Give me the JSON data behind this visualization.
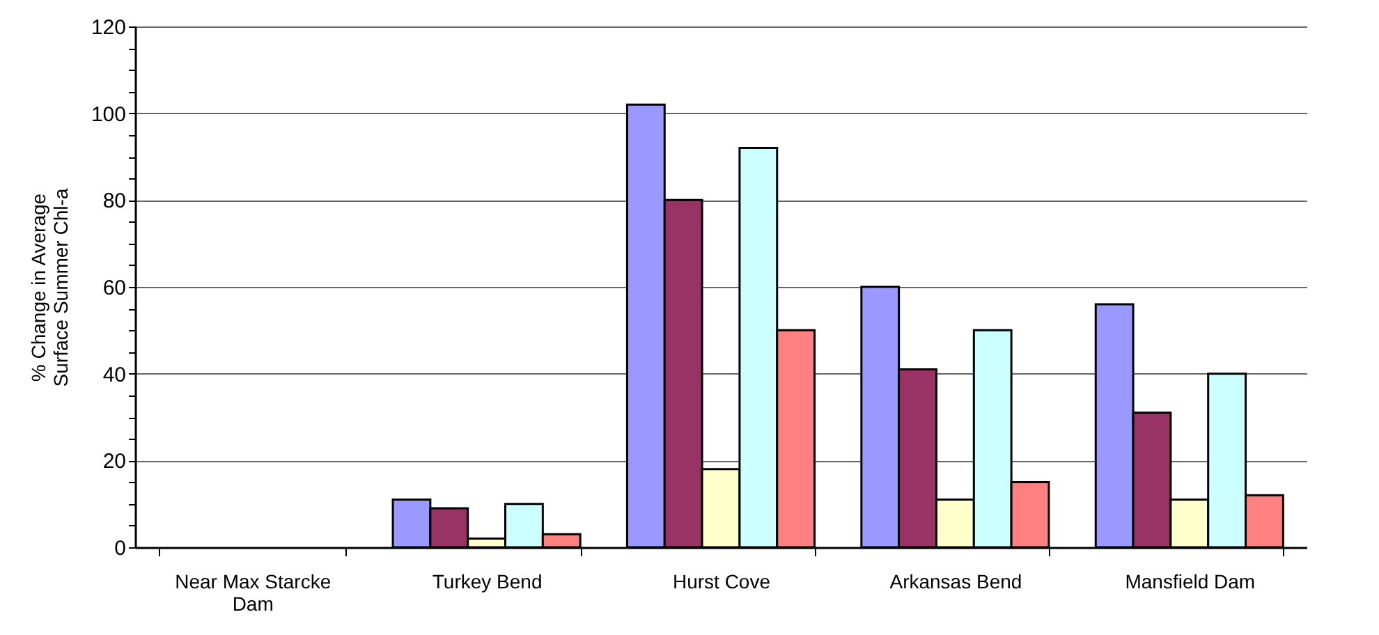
{
  "chart_data": {
    "type": "bar",
    "ylabel": "% Change in Average\nSurface Summer Chl-a",
    "categories": [
      "Near Max Starcke Dam",
      "Turkey Bend",
      "Hurst Cove",
      "Arkansas Bend",
      "Mansfield Dam"
    ],
    "series": [
      {
        "color": "#9999ff",
        "values": [
          null,
          11,
          102,
          60,
          56
        ]
      },
      {
        "color": "#993366",
        "values": [
          null,
          9,
          80,
          41,
          31
        ]
      },
      {
        "color": "#ffffcc",
        "values": [
          null,
          2,
          18,
          11,
          11
        ]
      },
      {
        "color": "#ccffff",
        "values": [
          null,
          10,
          92,
          50,
          40
        ]
      },
      {
        "color": "#ff8080",
        "values": [
          null,
          3,
          50,
          15,
          12
        ]
      }
    ],
    "ylim": [
      0,
      120
    ],
    "yticks": [
      0,
      {
        "value": 5,
        "label": null
      },
      {
        "value": 10,
        "label": null
      },
      {
        "value": 15,
        "label": null
      },
      20,
      {
        "value": 25,
        "label": null
      },
      {
        "value": 30,
        "label": null
      },
      {
        "value": 35,
        "label": null
      },
      40,
      {
        "value": 45,
        "label": null
      },
      {
        "value": 50,
        "label": null
      },
      {
        "value": 55,
        "label": null
      },
      60,
      {
        "value": 65,
        "label": null
      },
      {
        "value": 70,
        "label": null
      },
      {
        "value": 75,
        "label": null
      },
      80,
      {
        "value": 85,
        "label": null
      },
      {
        "value": 90,
        "label": null
      },
      {
        "value": 95,
        "label": null
      },
      100,
      {
        "value": 105,
        "label": null
      },
      {
        "value": 110,
        "label": null
      },
      {
        "value": 115,
        "label": null
      },
      120
    ],
    "grid": "y",
    "legend": false
  }
}
